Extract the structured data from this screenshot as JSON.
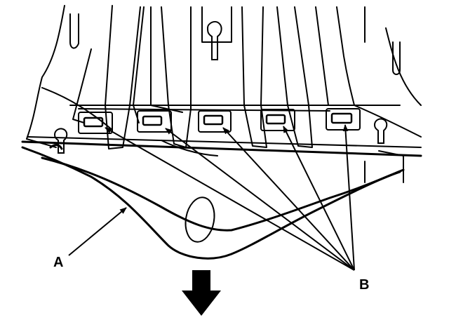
{
  "diagram": {
    "callouts": {
      "a": "A",
      "b": "B"
    },
    "line_color": "#000000",
    "background": "#ffffff",
    "direction_icon": "arrow-down-icon"
  }
}
